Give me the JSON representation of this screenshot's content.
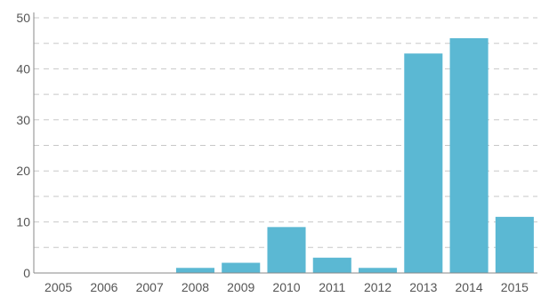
{
  "chart_data": {
    "type": "bar",
    "title": "",
    "xlabel": "",
    "ylabel": "",
    "categories": [
      "2005",
      "2006",
      "2007",
      "2008",
      "2009",
      "2010",
      "2011",
      "2012",
      "2013",
      "2014",
      "2015"
    ],
    "values": [
      0,
      0,
      0,
      1,
      2,
      9,
      3,
      1,
      43,
      46,
      11
    ],
    "ylim": [
      0,
      50
    ],
    "yticks": [
      "0",
      "10",
      "20",
      "30",
      "40",
      "50"
    ],
    "grid": true,
    "grid_style": "dashed",
    "legend": "none",
    "bar_color": "#5bb8d3",
    "grid_color": "#c8c8c8",
    "text_color": "#555555"
  }
}
